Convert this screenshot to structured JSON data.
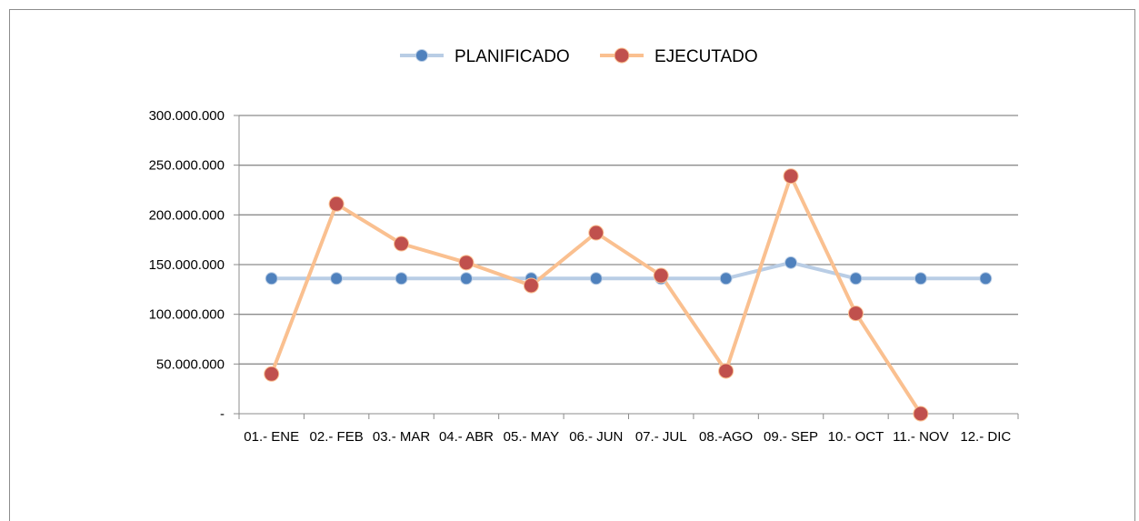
{
  "chart_data": {
    "type": "line",
    "categories": [
      "01.- ENE",
      "02.- FEB",
      "03.- MAR",
      "04.- ABR",
      "05.- MAY",
      "06.- JUN",
      "07.- JUL",
      "08.-AGO",
      "09.- SEP",
      "10.- OCT",
      "11.- NOV",
      "12.- DIC"
    ],
    "series": [
      {
        "name": "PLANIFICADO",
        "color": "#4f81bd",
        "line_color": "#b9cde5",
        "values": [
          136000000,
          136000000,
          136000000,
          136000000,
          136000000,
          136000000,
          136000000,
          136000000,
          152000000,
          136000000,
          136000000,
          136000000
        ]
      },
      {
        "name": "EJECUTADO",
        "color": "#c0504d",
        "line_color": "#fac090",
        "values": [
          40000000,
          211000000,
          171000000,
          152000000,
          129000000,
          182000000,
          139000000,
          43000000,
          239000000,
          101000000,
          0,
          null
        ]
      }
    ],
    "y_ticks": [
      "-",
      "50.000.000",
      "100.000.000",
      "150.000.000",
      "200.000.000",
      "250.000.000",
      "300.000.000"
    ],
    "ylim": [
      0,
      300000000
    ],
    "grid": true,
    "legend_position": "top"
  }
}
